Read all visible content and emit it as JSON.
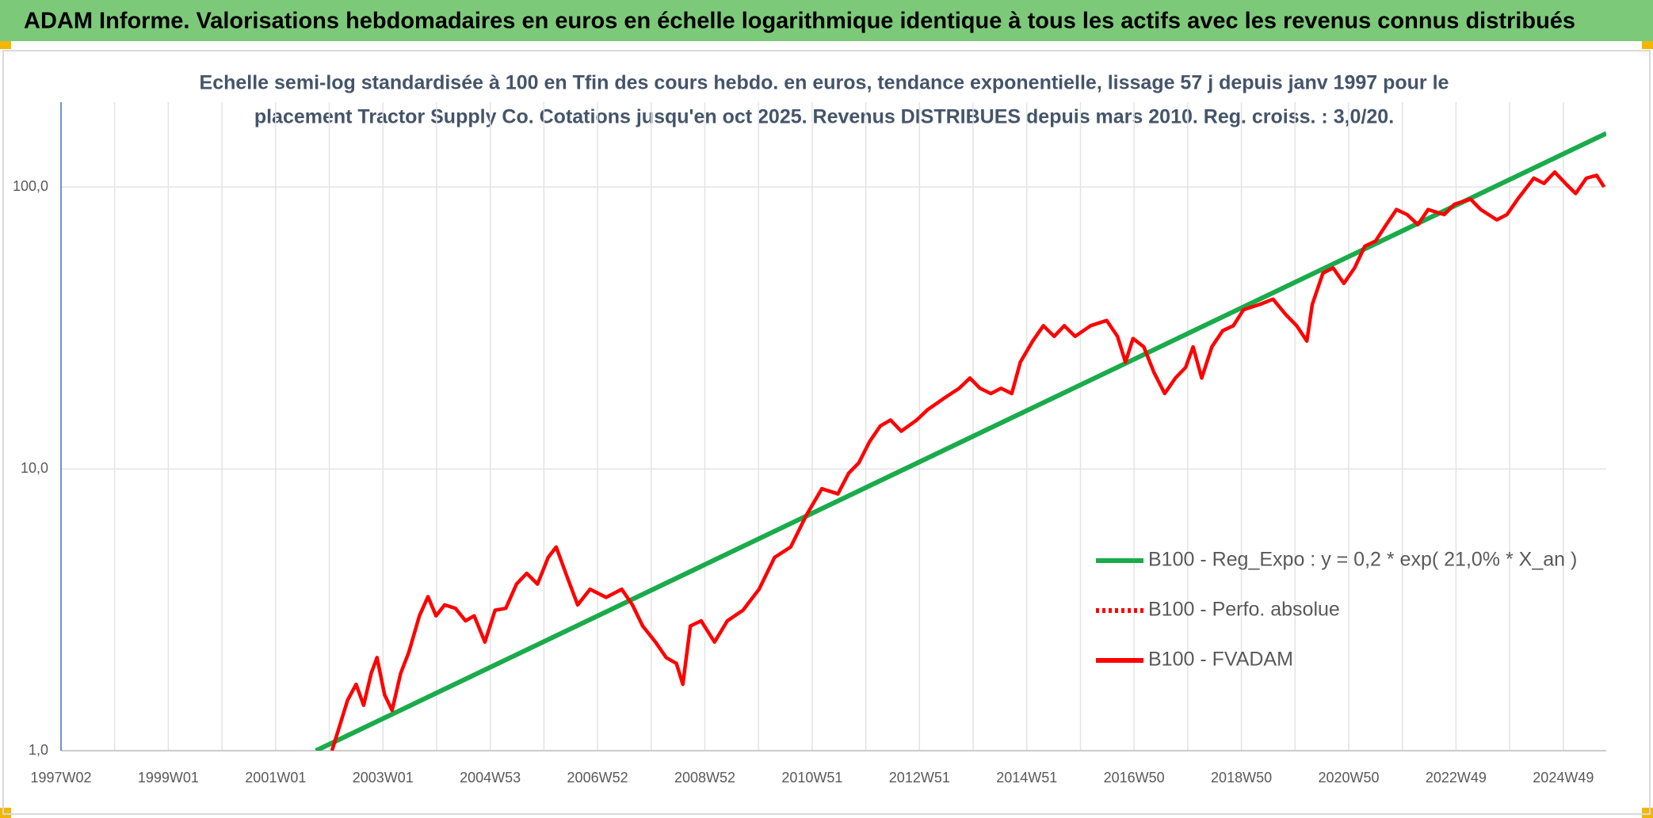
{
  "chart_data": {
    "type": "line",
    "title": "ADAM Informe. Valorisations hebdomadaires en euros en échelle logarithmique identique à tous les actifs avec les revenus connus distribués",
    "subtitle": [
      "Echelle semi-log standardisée à 100 en Tfin des cours hebdo. en euros, tendance exponentielle, lissage 57 j depuis janv 1997 pour le",
      "placement Tractor Supply Co. Cotations jusqu'en oct 2025. Revenus DISTRIBUES depuis mars 2010. Reg. croiss. : 3,0/20."
    ],
    "log_y": true,
    "grid": true,
    "legend_position": "right",
    "xlim": [
      1997,
      2025.8
    ],
    "ylim": [
      1,
      200
    ],
    "yticks": [
      {
        "value": 1,
        "label": "1,0"
      },
      {
        "value": 10,
        "label": "10,0"
      },
      {
        "value": 100,
        "label": "100,0"
      }
    ],
    "xticks": [
      {
        "value": 1997,
        "label": "1997W02"
      },
      {
        "value": 1999,
        "label": "1999W01"
      },
      {
        "value": 2001,
        "label": "2001W01"
      },
      {
        "value": 2003,
        "label": "2003W01"
      },
      {
        "value": 2005,
        "label": "2004W53"
      },
      {
        "value": 2007,
        "label": "2006W52"
      },
      {
        "value": 2009,
        "label": "2008W52"
      },
      {
        "value": 2011,
        "label": "2010W51"
      },
      {
        "value": 2013,
        "label": "2012W51"
      },
      {
        "value": 2015,
        "label": "2014W51"
      },
      {
        "value": 2017,
        "label": "2016W50"
      },
      {
        "value": 2019,
        "label": "2018W50"
      },
      {
        "value": 2021,
        "label": "2020W50"
      },
      {
        "value": 2023,
        "label": "2022W49"
      },
      {
        "value": 2025,
        "label": "2024W49"
      }
    ],
    "xminor_ticks": [
      1998,
      2000,
      2002,
      2004,
      2006,
      2008,
      2010,
      2012,
      2014,
      2016,
      2018,
      2020,
      2022,
      2024
    ],
    "series": [
      {
        "name": "B100 - Reg_Expo : y = 0,2 * exp( 21,0% *  X_an )",
        "color": "#1aab4b",
        "style": "solid",
        "x": [
          2001.75,
          2025.8
        ],
        "values": [
          1.0,
          155
        ]
      },
      {
        "name": "B100 - Perfo. absolue",
        "color": "#ff0000",
        "style": "dotted",
        "x": [],
        "values": []
      },
      {
        "name": "B100 - FVADAM",
        "color": "#ff0000",
        "style": "solid",
        "x": [
          2002.05,
          2002.19,
          2002.34,
          2002.5,
          2002.64,
          2002.78,
          2002.89,
          2003.03,
          2003.17,
          2003.33,
          2003.48,
          2003.68,
          2003.84,
          2003.99,
          2004.15,
          2004.35,
          2004.54,
          2004.7,
          2004.9,
          2005.09,
          2005.29,
          2005.49,
          2005.68,
          2005.88,
          2006.08,
          2006.23,
          2006.43,
          2006.63,
          2006.86,
          2007.16,
          2007.45,
          2007.65,
          2007.84,
          2008.08,
          2008.28,
          2008.47,
          2008.59,
          2008.73,
          2008.93,
          2009.18,
          2009.42,
          2009.71,
          2010.01,
          2010.3,
          2010.6,
          2010.89,
          2011.18,
          2011.48,
          2011.68,
          2011.87,
          2012.07,
          2012.27,
          2012.46,
          2012.66,
          2012.95,
          2013.15,
          2013.44,
          2013.74,
          2013.94,
          2014.13,
          2014.33,
          2014.52,
          2014.72,
          2014.88,
          2015.11,
          2015.31,
          2015.51,
          2015.7,
          2015.9,
          2016.19,
          2016.49,
          2016.69,
          2016.84,
          2016.98,
          2017.18,
          2017.37,
          2017.57,
          2017.77,
          2017.96,
          2018.1,
          2018.26,
          2018.45,
          2018.65,
          2018.85,
          2019.04,
          2019.34,
          2019.59,
          2019.83,
          2020.03,
          2020.22,
          2020.32,
          2020.52,
          2020.71,
          2020.91,
          2021.11,
          2021.3,
          2021.5,
          2021.7,
          2021.89,
          2022.09,
          2022.29,
          2022.48,
          2022.78,
          2022.97,
          2023.27,
          2023.46,
          2023.76,
          2023.95,
          2024.15,
          2024.45,
          2024.64,
          2024.84,
          2025.04,
          2025.23,
          2025.43,
          2025.62,
          2025.76
        ],
        "values": [
          1.0,
          1.22,
          1.51,
          1.72,
          1.45,
          1.88,
          2.14,
          1.58,
          1.39,
          1.88,
          2.23,
          3.01,
          3.52,
          3.01,
          3.29,
          3.2,
          2.89,
          3.01,
          2.43,
          3.15,
          3.2,
          3.9,
          4.26,
          3.9,
          4.85,
          5.28,
          4.15,
          3.29,
          3.74,
          3.5,
          3.74,
          3.29,
          2.77,
          2.43,
          2.14,
          2.04,
          1.72,
          2.77,
          2.89,
          2.43,
          2.89,
          3.15,
          3.74,
          4.85,
          5.28,
          6.84,
          8.5,
          8.15,
          9.65,
          10.5,
          12.5,
          14.2,
          14.9,
          13.6,
          14.9,
          16.2,
          17.7,
          19.3,
          21.0,
          19.3,
          18.5,
          19.3,
          18.5,
          23.9,
          28.4,
          32.2,
          29.5,
          32.2,
          29.5,
          32.2,
          33.6,
          29.5,
          23.9,
          29.0,
          27.1,
          22.0,
          18.5,
          21.0,
          22.9,
          27.1,
          21.0,
          27.1,
          30.9,
          32.2,
          36.7,
          38.3,
          40.0,
          35.2,
          32.2,
          28.4,
          38.3,
          49.5,
          51.6,
          45.5,
          51.6,
          61.6,
          64.3,
          73.5,
          83.2,
          79.8,
          73.5,
          83.2,
          79.8,
          86.8,
          90.6,
          83.2,
          76.5,
          79.8,
          90.6,
          107.5,
          103,
          113,
          103,
          94.8,
          107.5,
          110,
          100
        ]
      }
    ]
  }
}
